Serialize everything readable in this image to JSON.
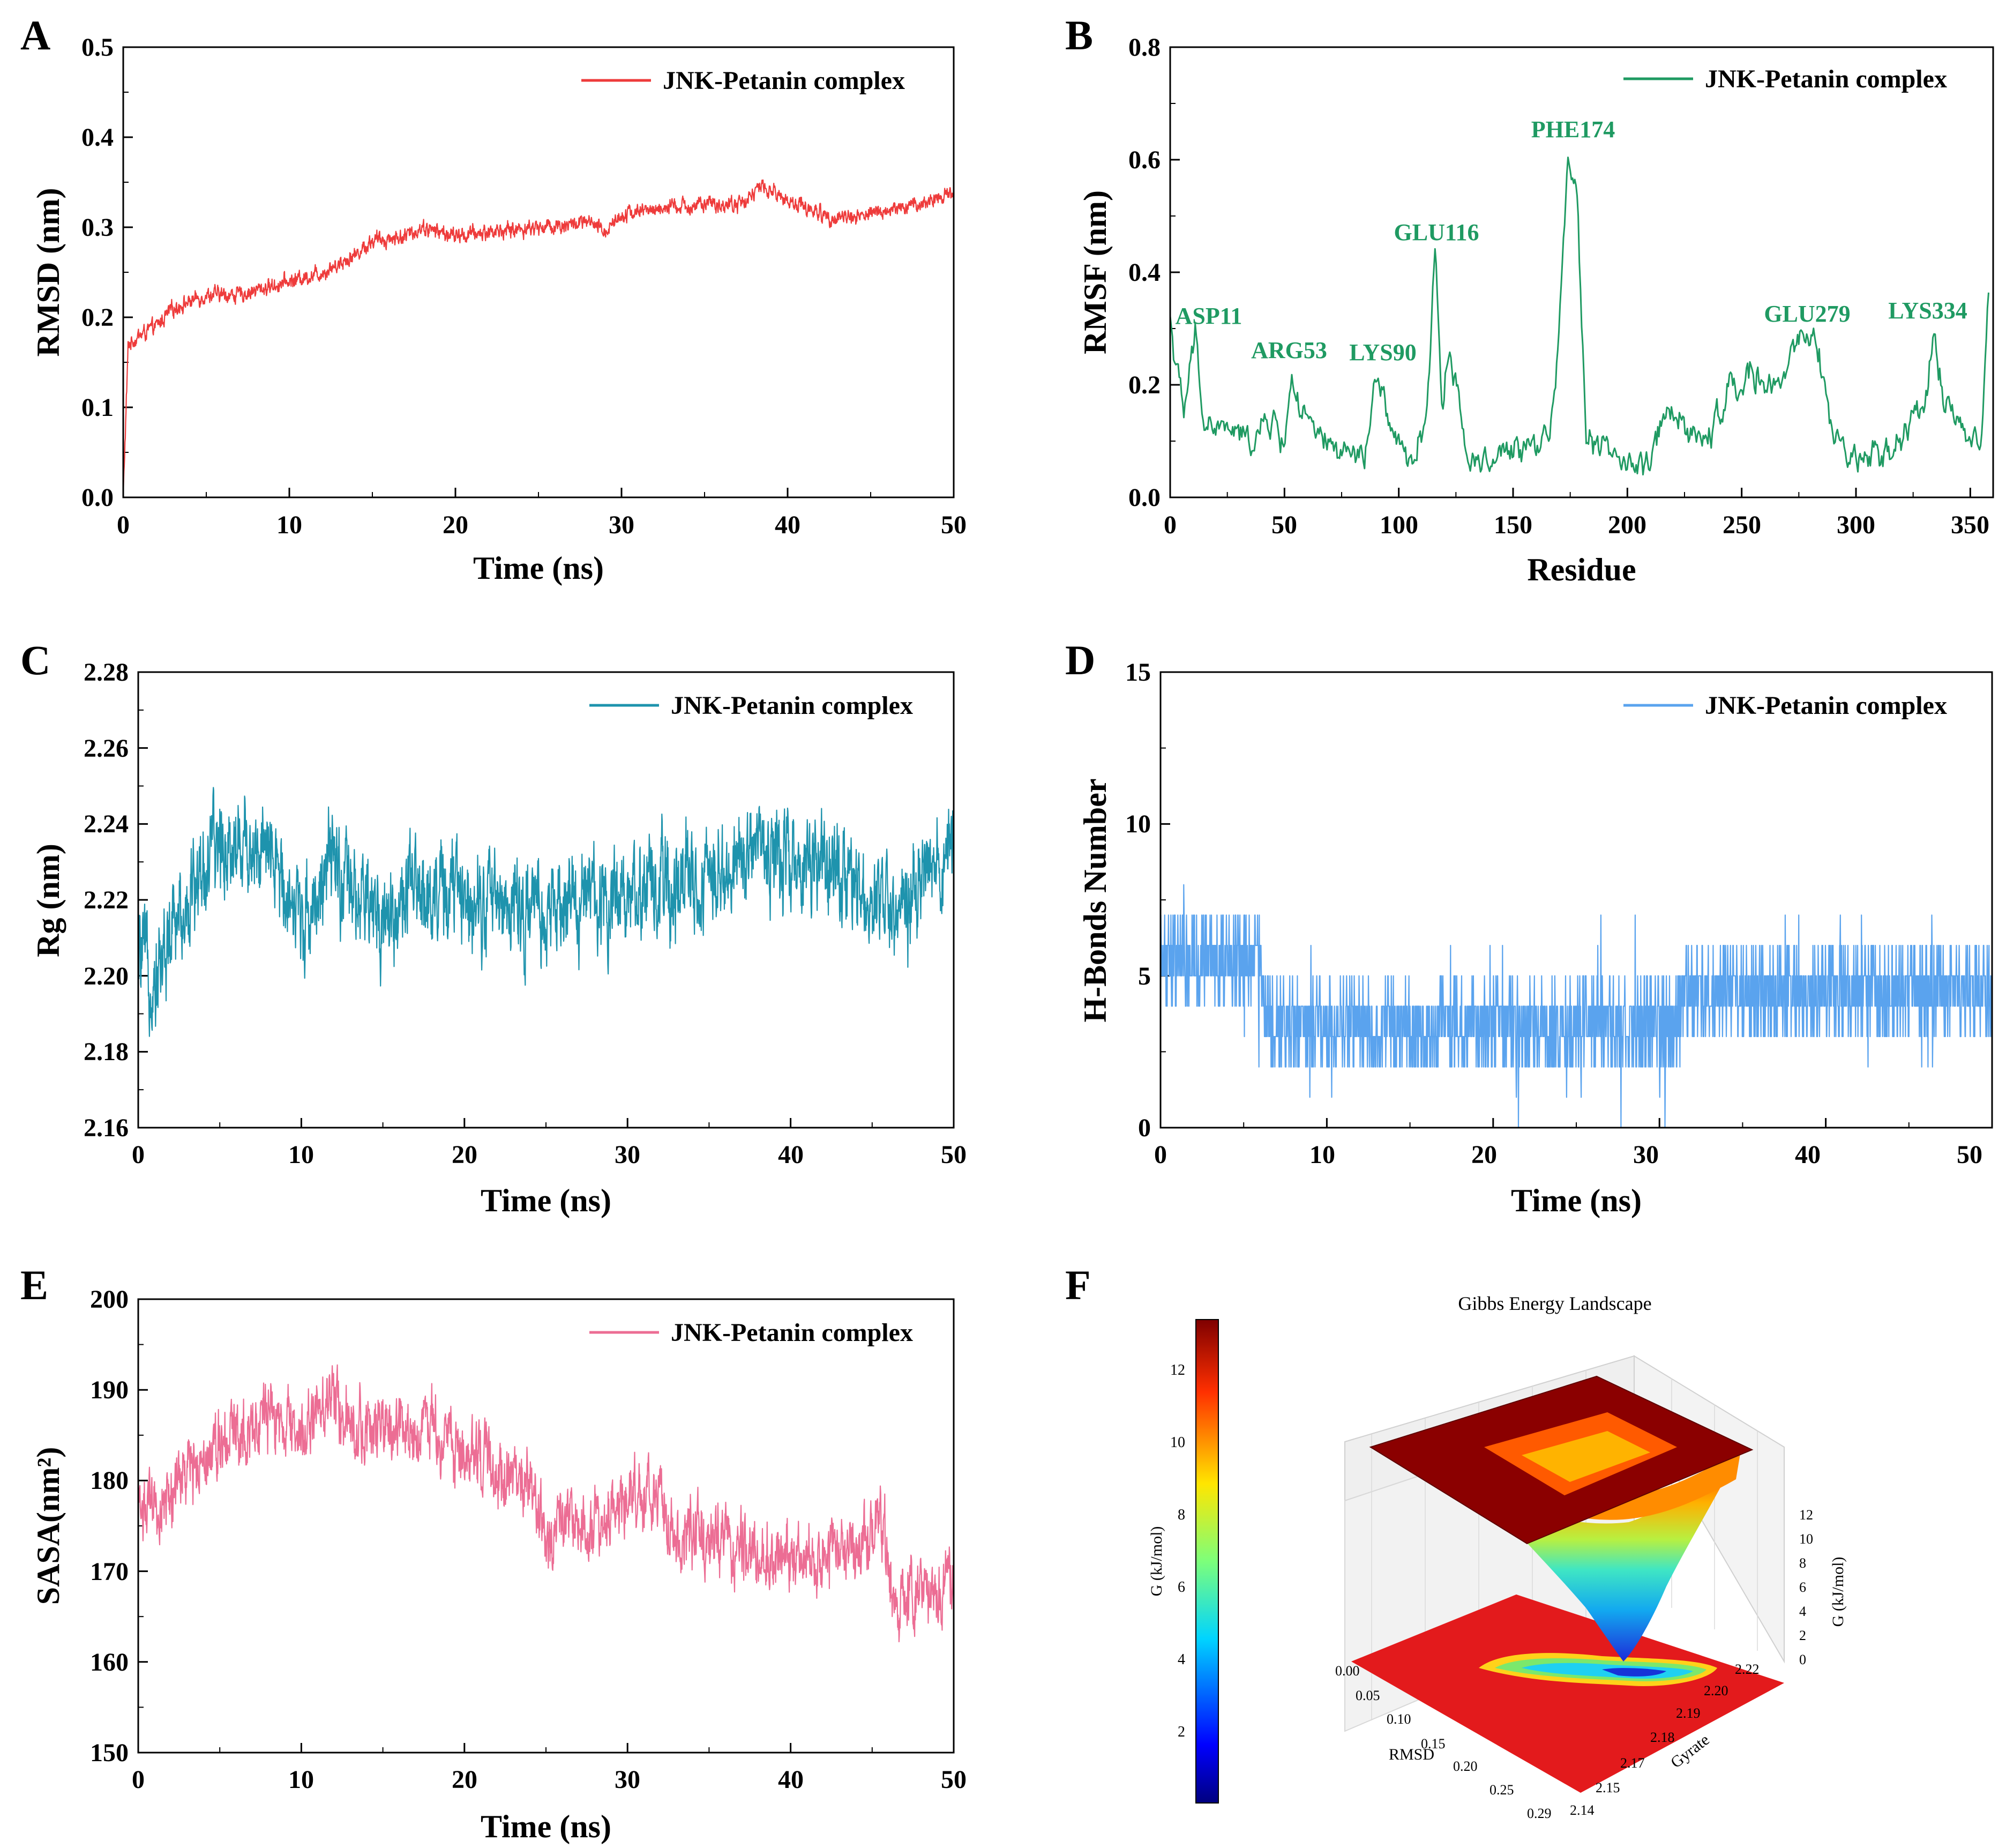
{
  "figure": {
    "panel_labels": [
      "A",
      "B",
      "C",
      "D",
      "E",
      "F"
    ]
  },
  "chart_data": [
    {
      "panel": "A",
      "type": "line",
      "xlabel": "Time (ns)",
      "ylabel": "RMSD (nm)",
      "xlim": [
        0,
        50
      ],
      "ylim": [
        0.0,
        0.5
      ],
      "xticks": [
        "0",
        "10",
        "20",
        "30",
        "40",
        "50"
      ],
      "yticks": [
        "0.0",
        "0.1",
        "0.2",
        "0.3",
        "0.4",
        "0.5"
      ],
      "legend": "JNK-Petanin complex",
      "legend_position": "top-right",
      "color": "#ee3b3b",
      "series": [
        {
          "name": "JNK-Petanin complex",
          "x": [
            0,
            0.3,
            1,
            2,
            3,
            5,
            7,
            10,
            12,
            14,
            15,
            17,
            18,
            20,
            22,
            25,
            28,
            29,
            30,
            32,
            35,
            37,
            38.5,
            40,
            42,
            43,
            45,
            48,
            50
          ],
          "y": [
            0.0,
            0.17,
            0.18,
            0.19,
            0.21,
            0.225,
            0.225,
            0.24,
            0.25,
            0.27,
            0.285,
            0.29,
            0.3,
            0.29,
            0.295,
            0.3,
            0.305,
            0.295,
            0.315,
            0.32,
            0.325,
            0.325,
            0.345,
            0.33,
            0.315,
            0.31,
            0.315,
            0.325,
            0.34
          ],
          "noise": 0.006
        }
      ]
    },
    {
      "panel": "B",
      "type": "line",
      "xlabel": "Residue",
      "ylabel": "RMSF (nm)",
      "xlim": [
        0,
        360
      ],
      "ylim": [
        0.0,
        0.8
      ],
      "xticks": [
        "0",
        "50",
        "100",
        "150",
        "200",
        "250",
        "300",
        "350"
      ],
      "yticks": [
        "0.0",
        "0.2",
        "0.4",
        "0.6",
        "0.8"
      ],
      "legend": "JNK-Petanin complex",
      "legend_position": "top-right",
      "color": "#1f9a62",
      "series": [
        {
          "name": "JNK-Petanin complex",
          "x": [
            0,
            3,
            6,
            11,
            15,
            25,
            35,
            45,
            50,
            53,
            57,
            65,
            75,
            85,
            90,
            93,
            100,
            105,
            112,
            116,
            119,
            122,
            130,
            140,
            150,
            160,
            166,
            170,
            174,
            178,
            182,
            190,
            200,
            207,
            212,
            218,
            225,
            235,
            245,
            255,
            265,
            272,
            278,
            284,
            290,
            300,
            310,
            320,
            330,
            334,
            338,
            345,
            350,
            355,
            358
          ],
          "y": [
            0.32,
            0.22,
            0.15,
            0.29,
            0.13,
            0.12,
            0.1,
            0.14,
            0.09,
            0.22,
            0.15,
            0.1,
            0.08,
            0.07,
            0.2,
            0.18,
            0.08,
            0.06,
            0.14,
            0.45,
            0.15,
            0.28,
            0.07,
            0.06,
            0.09,
            0.09,
            0.12,
            0.28,
            0.62,
            0.55,
            0.1,
            0.08,
            0.06,
            0.05,
            0.08,
            0.18,
            0.12,
            0.1,
            0.2,
            0.22,
            0.18,
            0.26,
            0.3,
            0.26,
            0.1,
            0.08,
            0.07,
            0.1,
            0.16,
            0.3,
            0.18,
            0.14,
            0.1,
            0.1,
            0.38
          ],
          "noise": 0.018
        }
      ],
      "annotations": [
        {
          "label": "ASP11",
          "x": 11,
          "y": 0.31
        },
        {
          "label": "ARG53",
          "x": 53,
          "y": 0.245
        },
        {
          "label": "LYS90",
          "x": 90,
          "y": 0.235
        },
        {
          "label": "GLU116",
          "x": 116,
          "y": 0.46
        },
        {
          "label": "PHE174",
          "x": 174,
          "y": 0.64
        },
        {
          "label": "GLU279",
          "x": 279,
          "y": 0.31
        },
        {
          "label": "LYS334",
          "x": 334,
          "y": 0.315
        }
      ]
    },
    {
      "panel": "C",
      "type": "line",
      "xlabel": "Time (ns)",
      "ylabel": "Rg (nm)",
      "xlim": [
        0,
        50
      ],
      "ylim": [
        2.16,
        2.28
      ],
      "xticks": [
        "0",
        "10",
        "20",
        "30",
        "40",
        "50"
      ],
      "yticks": [
        "2.16",
        "2.18",
        "2.20",
        "2.22",
        "2.24",
        "2.26",
        "2.28"
      ],
      "legend": "JNK-Petanin complex",
      "legend_position": "top-right",
      "color": "#1e93ad",
      "series": [
        {
          "name": "JNK-Petanin complex",
          "x": [
            0,
            1,
            2,
            3,
            5,
            7,
            9,
            10,
            12,
            13,
            15,
            17,
            20,
            22,
            25,
            27,
            30,
            32,
            35,
            38,
            40,
            42,
            45,
            47,
            48,
            50
          ],
          "y": [
            2.205,
            2.2,
            2.21,
            2.22,
            2.235,
            2.235,
            2.225,
            2.215,
            2.23,
            2.22,
            2.215,
            2.222,
            2.222,
            2.22,
            2.215,
            2.22,
            2.222,
            2.222,
            2.225,
            2.235,
            2.23,
            2.228,
            2.222,
            2.218,
            2.225,
            2.232
          ],
          "noise": 0.009
        }
      ]
    },
    {
      "panel": "D",
      "type": "line",
      "xlabel": "Time (ns)",
      "ylabel": "H-Bonds Number",
      "xlim": [
        0,
        50
      ],
      "ylim": [
        0,
        15
      ],
      "xticks": [
        "0",
        "10",
        "20",
        "30",
        "40",
        "50"
      ],
      "yticks": [
        "0",
        "5",
        "10",
        "15"
      ],
      "legend": "JNK-Petanin complex",
      "legend_position": "top-right",
      "color": "#5aa3ee",
      "series": [
        {
          "name": "JNK-Petanin complex",
          "x": [
            0,
            6,
            6.5,
            31,
            31.5,
            50
          ],
          "y": [
            5.5,
            5.5,
            3.3,
            3.3,
            4.5,
            4.5
          ],
          "noise": 1.4,
          "discrete": true
        }
      ]
    },
    {
      "panel": "E",
      "type": "line",
      "xlabel": "Time (ns)",
      "ylabel": "SASA(nm²)",
      "xlim": [
        0,
        50
      ],
      "ylim": [
        150,
        200
      ],
      "xticks": [
        "0",
        "10",
        "20",
        "30",
        "40",
        "50"
      ],
      "yticks": [
        "150",
        "160",
        "170",
        "180",
        "190",
        "200"
      ],
      "legend": "JNK-Petanin complex",
      "legend_position": "top-right",
      "color": "#ec6d94",
      "series": [
        {
          "name": "JNK-Petanin complex",
          "x": [
            0,
            1,
            3,
            5,
            8,
            10,
            12,
            13,
            15,
            18,
            20,
            22,
            24,
            25,
            28,
            30,
            32,
            33,
            35,
            38,
            40,
            42,
            44,
            45.5,
            46.5,
            48,
            50
          ],
          "y": [
            178,
            176,
            181,
            185,
            187,
            185,
            190,
            186,
            185,
            186,
            183,
            181,
            180,
            174,
            175,
            178,
            178,
            173,
            174,
            172,
            171,
            172,
            172,
            176,
            166,
            167,
            169
          ],
          "noise": 2.6
        }
      ]
    },
    {
      "panel": "F",
      "type": "heatmap",
      "title": "Gibbs Energy Landscape",
      "colorbar_label": "G (kJ/mol)",
      "colorbar_ticks": [
        "2",
        "4",
        "6",
        "8",
        "10",
        "12"
      ],
      "zlabel": "G (kJ/mol)",
      "zticks": [
        "0",
        "2",
        "4",
        "6",
        "8",
        "10",
        "12"
      ],
      "xlabel": "RMSD",
      "xticks": [
        "0.00",
        "0.05",
        "0.10",
        "0.15",
        "0.20",
        "0.25",
        "0.29"
      ],
      "ylabel": "Gyrate",
      "yticks": [
        "2.14",
        "2.15",
        "2.17",
        "2.18",
        "2.19",
        "2.20",
        "2.22"
      ],
      "zlim": [
        0,
        13
      ],
      "minimum": {
        "RMSD": 0.29,
        "Gyrate": 2.22,
        "G": 0
      }
    }
  ]
}
